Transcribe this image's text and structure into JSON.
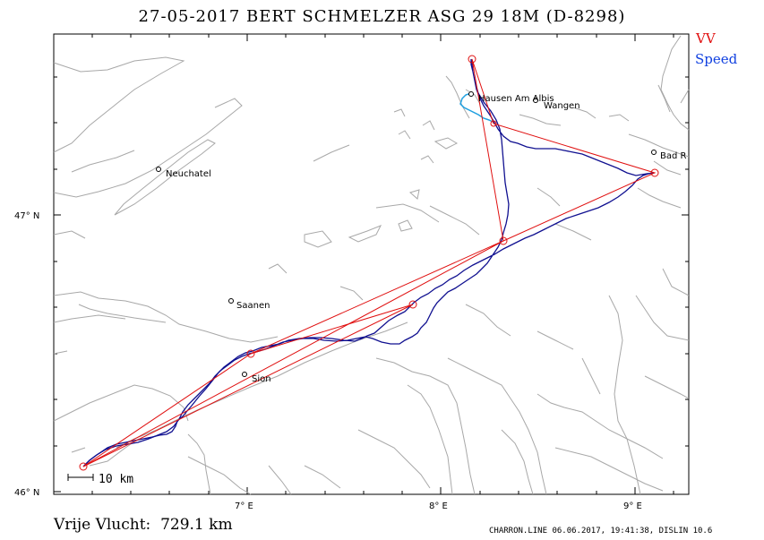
{
  "title": "27-05-2017   BERT SCHMELZER   ASG 29 18M (D-8298)",
  "legend": {
    "vv": "VV",
    "speed": "Speed"
  },
  "colors": {
    "vv": "#e01010",
    "speed": "#1040e0",
    "track_dark": "#101090",
    "track_light": "#20a0e0",
    "terrain": "#a8a8a8"
  },
  "axes": {
    "lat_labels": [
      "47° N",
      "46° N"
    ],
    "lon_labels": [
      "7° E",
      "8° E",
      "9° E"
    ]
  },
  "places": {
    "neuchatel": "Neuchatel",
    "saanen": "Saanen",
    "sion": "Sion",
    "hausen": "Hausen Am Albis",
    "wangen": "Wangen",
    "bad": "Bad R"
  },
  "scale_label": "10 km",
  "footer": {
    "distance": "Vrije Vlucht:  729.1 km",
    "credit": "CHARRON.LINE 06.06.2017, 19:41:38, DISLIN 10.6"
  }
}
